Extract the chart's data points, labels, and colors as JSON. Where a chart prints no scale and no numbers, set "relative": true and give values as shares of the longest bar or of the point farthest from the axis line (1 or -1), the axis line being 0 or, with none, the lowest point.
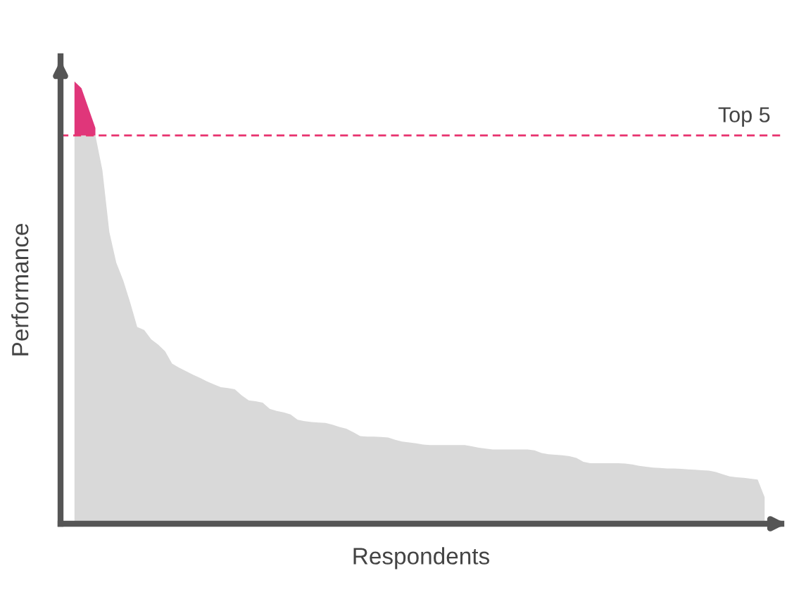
{
  "chart_data": {
    "type": "area",
    "relative": true,
    "xlabel": "Respondents",
    "ylabel": "Performance",
    "categories": [
      null,
      null,
      null,
      null,
      null,
      null,
      null,
      null,
      null,
      null,
      null,
      null,
      null,
      null,
      null,
      null,
      null,
      null,
      null,
      null,
      null,
      null,
      null,
      null,
      null,
      null,
      null,
      null,
      null,
      null,
      null,
      null,
      null,
      null,
      null,
      null,
      null,
      null,
      null,
      null,
      null,
      null,
      null,
      null,
      null,
      null,
      null,
      null,
      null,
      null,
      null,
      null,
      null,
      null,
      null,
      null,
      null,
      null,
      null,
      null,
      null,
      null,
      null,
      null,
      null,
      null,
      null,
      null,
      null,
      null,
      null,
      null,
      null,
      null,
      null,
      null,
      null,
      null,
      null,
      null,
      null,
      null,
      null,
      null,
      null,
      null,
      null,
      null,
      null,
      null,
      null,
      null,
      null,
      null,
      null,
      null,
      null,
      null,
      null,
      null
    ],
    "stacked": true,
    "series": [
      {
        "color": "#d9d9d9",
        "values": [
          0.878,
          0.878,
          0.878,
          0.878,
          0.8,
          0.66,
          0.59,
          0.55,
          0.5,
          0.445,
          0.438,
          0.417,
          0.405,
          0.39,
          0.362,
          0.353,
          0.345,
          0.337,
          0.33,
          0.322,
          0.315,
          0.309,
          0.307,
          0.304,
          0.29,
          0.279,
          0.277,
          0.274,
          0.26,
          0.255,
          0.252,
          0.247,
          0.235,
          0.232,
          0.23,
          0.229,
          0.228,
          0.224,
          0.219,
          0.215,
          0.207,
          0.198,
          0.197,
          0.197,
          0.196,
          0.195,
          0.19,
          0.186,
          0.184,
          0.182,
          0.179,
          0.178,
          0.178,
          0.178,
          0.178,
          0.178,
          0.178,
          0.175,
          0.172,
          0.17,
          0.168,
          0.168,
          0.168,
          0.168,
          0.168,
          0.168,
          0.166,
          0.16,
          0.157,
          0.156,
          0.155,
          0.153,
          0.149,
          0.14,
          0.137,
          0.137,
          0.137,
          0.137,
          0.137,
          0.136,
          0.134,
          0.131,
          0.129,
          0.127,
          0.126,
          0.125,
          0.125,
          0.124,
          0.123,
          0.122,
          0.121,
          0.12,
          0.117,
          0.112,
          0.107,
          0.105,
          0.104,
          0.102,
          0.1,
          0.06
        ]
      },
      {
        "color": "#e0367a",
        "values": [
          0.122,
          0.107,
          0.062,
          0.017,
          null,
          null,
          null,
          null,
          null,
          null,
          null,
          null,
          null,
          null,
          null,
          null,
          null,
          null,
          null,
          null,
          null,
          null,
          null,
          null,
          null,
          null,
          null,
          null,
          null,
          null,
          null,
          null,
          null,
          null,
          null,
          null,
          null,
          null,
          null,
          null,
          null,
          null,
          null,
          null,
          null,
          null,
          null,
          null,
          null,
          null,
          null,
          null,
          null,
          null,
          null,
          null,
          null,
          null,
          null,
          null,
          null,
          null,
          null,
          null,
          null,
          null,
          null,
          null,
          null,
          null,
          null,
          null,
          null,
          null,
          null,
          null,
          null,
          null,
          null,
          null,
          null,
          null,
          null,
          null,
          null,
          null,
          null,
          null,
          null,
          null,
          null,
          null,
          null,
          null,
          null,
          null,
          null,
          null,
          null,
          null
        ]
      }
    ],
    "ref_lines": [
      {
        "axis": "y",
        "value": 0.878,
        "label": "Top 5",
        "color": "#e8336f",
        "line_style": "dashed"
      }
    ],
    "legend": false
  }
}
